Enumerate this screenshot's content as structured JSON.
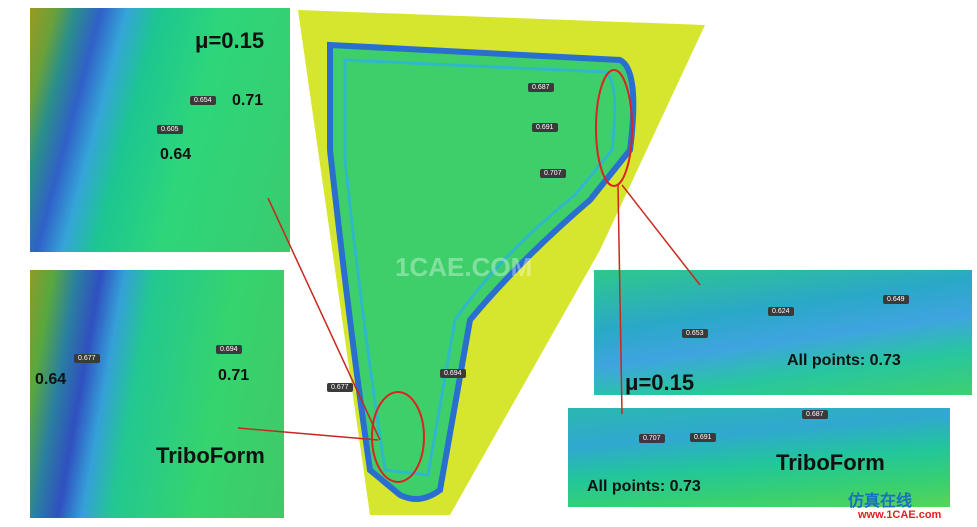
{
  "panels": [
    {
      "texts": [
        "μ=0.15",
        "0.654",
        "0.71",
        "0.605",
        "0.64"
      ]
    },
    {
      "texts": [
        "0.677",
        "0.694",
        "0.64",
        "0.71",
        "TriboForm"
      ]
    },
    {
      "texts": [
        "0.687",
        "0.691",
        "0.707",
        "0.677",
        "0.694",
        "1CAE.COM"
      ]
    },
    {
      "texts": [
        "0.653",
        "0.624",
        "0.649",
        "All points: 0.73"
      ]
    },
    {
      "texts": [
        "μ=0.15"
      ]
    },
    {
      "texts": [
        "0.687",
        "0.707",
        "0.691",
        "TriboForm",
        "All points: 0.73"
      ]
    }
  ],
  "logo": {
    "title": "仿真在线",
    "url": "www.1CAE.com"
  }
}
